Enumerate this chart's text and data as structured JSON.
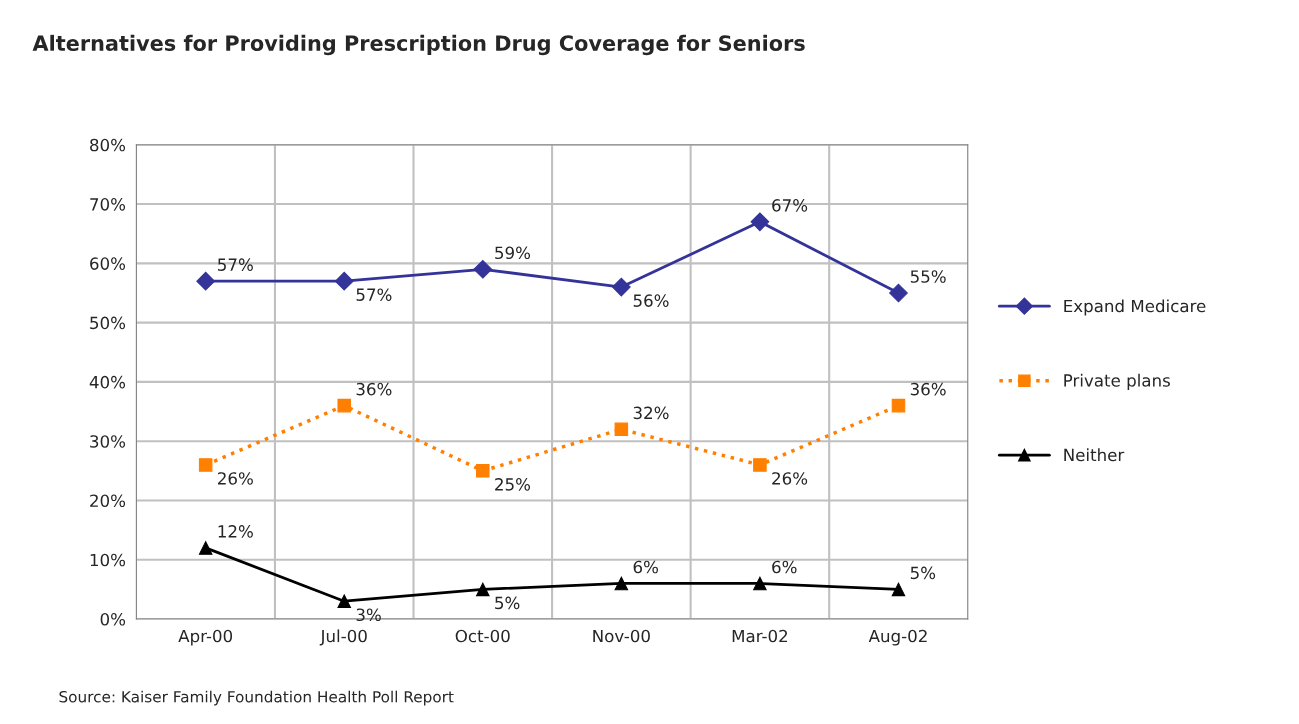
{
  "chart_data": {
    "type": "line",
    "title": "Alternatives for Providing Prescription Drug Coverage for Seniors",
    "categories": [
      "Apr-00",
      "Jul-00",
      "Oct-00",
      "Nov-00",
      "Mar-02",
      "Aug-02"
    ],
    "series": [
      {
        "name": "Expand Medicare",
        "color": "#333399",
        "marker": "diamond",
        "line_style": "solid",
        "values": [
          57,
          57,
          59,
          56,
          67,
          55
        ],
        "value_labels": [
          "57%",
          "57%",
          "59%",
          "56%",
          "67%",
          "55%"
        ]
      },
      {
        "name": "Private plans",
        "color": "#ff8000",
        "marker": "square",
        "line_style": "dotted",
        "values": [
          26,
          36,
          25,
          32,
          26,
          36
        ],
        "value_labels": [
          "26%",
          "36%",
          "25%",
          "32%",
          "26%",
          "36%"
        ]
      },
      {
        "name": "Neither",
        "color": "#000000",
        "marker": "triangle",
        "line_style": "solid",
        "values": [
          12,
          3,
          5,
          6,
          6,
          5
        ],
        "value_labels": [
          "12%",
          "3%",
          "5%",
          "6%",
          "6%",
          "5%"
        ]
      }
    ],
    "ylim": [
      0,
      80
    ],
    "yticks": [
      {
        "value": 0,
        "label": "0%"
      },
      {
        "value": 10,
        "label": "10%"
      },
      {
        "value": 20,
        "label": "20%"
      },
      {
        "value": 30,
        "label": "30%"
      },
      {
        "value": 40,
        "label": "40%"
      },
      {
        "value": 50,
        "label": "50%"
      },
      {
        "value": 60,
        "label": "60%"
      },
      {
        "value": 70,
        "label": "70%"
      },
      {
        "value": 80,
        "label": "80%"
      }
    ],
    "grid": true,
    "legend": "right",
    "annotations": [
      "Source: Kaiser Family Foundation Health Poll Report"
    ]
  }
}
